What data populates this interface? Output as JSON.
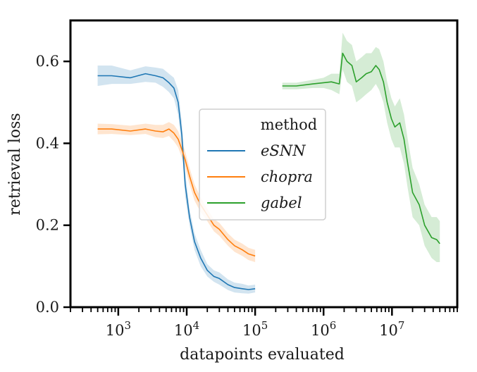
{
  "chart_data": {
    "type": "line",
    "xlabel": "datapoints evaluated",
    "ylabel": "retrieval loss",
    "xscale": "log",
    "xlim": [
      200,
      90000000
    ],
    "ylim": [
      0.0,
      0.7
    ],
    "yticks": [
      0.0,
      0.2,
      0.4,
      0.6
    ],
    "ytick_labels": [
      "0.0",
      "0.2",
      "0.4",
      "0.6"
    ],
    "xticks": [
      1000,
      10000,
      100000,
      1000000,
      10000000
    ],
    "xtick_labels": [
      {
        "base": "10",
        "exp": "3"
      },
      {
        "base": "10",
        "exp": "4"
      },
      {
        "base": "10",
        "exp": "5"
      },
      {
        "base": "10",
        "exp": "6"
      },
      {
        "base": "10",
        "exp": "7"
      }
    ],
    "grid": false,
    "legend": {
      "title": "method",
      "placement": "center"
    },
    "series": [
      {
        "name": "eSNN",
        "color": "#1f77b4",
        "x": [
          500,
          800,
          1500,
          2500,
          3500,
          4500,
          5500,
          6500,
          7500,
          8500,
          9500,
          11000,
          13000,
          16000,
          20000,
          25000,
          30000,
          40000,
          50000,
          65000,
          80000,
          100000
        ],
        "y": [
          0.565,
          0.565,
          0.56,
          0.57,
          0.565,
          0.56,
          0.548,
          0.535,
          0.5,
          0.42,
          0.3,
          0.22,
          0.16,
          0.12,
          0.09,
          0.075,
          0.07,
          0.055,
          0.048,
          0.045,
          0.043,
          0.045
        ],
        "lower": [
          0.54,
          0.545,
          0.545,
          0.55,
          0.548,
          0.538,
          0.525,
          0.51,
          0.47,
          0.39,
          0.27,
          0.2,
          0.14,
          0.1,
          0.075,
          0.062,
          0.055,
          0.042,
          0.036,
          0.034,
          0.033,
          0.036
        ],
        "upper": [
          0.59,
          0.59,
          0.578,
          0.588,
          0.585,
          0.582,
          0.57,
          0.56,
          0.53,
          0.45,
          0.33,
          0.24,
          0.18,
          0.14,
          0.105,
          0.09,
          0.085,
          0.068,
          0.06,
          0.057,
          0.053,
          0.055
        ]
      },
      {
        "name": "chopra",
        "color": "#ff7f0e",
        "x": [
          500,
          800,
          1500,
          2500,
          3500,
          4500,
          5500,
          6500,
          7500,
          8500,
          9500,
          11000,
          13000,
          16000,
          20000,
          25000,
          30000,
          40000,
          50000,
          65000,
          80000,
          100000
        ],
        "y": [
          0.435,
          0.435,
          0.43,
          0.435,
          0.43,
          0.428,
          0.435,
          0.425,
          0.41,
          0.385,
          0.36,
          0.32,
          0.28,
          0.25,
          0.225,
          0.2,
          0.19,
          0.165,
          0.15,
          0.14,
          0.13,
          0.125
        ],
        "lower": [
          0.422,
          0.423,
          0.42,
          0.423,
          0.415,
          0.413,
          0.418,
          0.405,
          0.39,
          0.365,
          0.34,
          0.3,
          0.26,
          0.232,
          0.21,
          0.185,
          0.174,
          0.15,
          0.135,
          0.125,
          0.115,
          0.11
        ],
        "upper": [
          0.448,
          0.447,
          0.443,
          0.448,
          0.445,
          0.445,
          0.452,
          0.445,
          0.43,
          0.405,
          0.38,
          0.34,
          0.3,
          0.268,
          0.24,
          0.215,
          0.206,
          0.18,
          0.165,
          0.155,
          0.145,
          0.14
        ]
      },
      {
        "name": "gabel",
        "color": "#2ca02c",
        "x": [
          250000,
          400000,
          700000,
          1000000,
          1300000,
          1700000,
          1900000,
          2200000,
          2600000,
          3000000,
          3600000,
          4200000,
          5000000,
          5800000,
          6500000,
          7500000,
          8500000,
          9800000,
          11000000,
          13000000,
          15000000,
          17000000,
          20000000,
          25000000,
          30000000,
          38000000,
          45000000,
          50000000
        ],
        "y": [
          0.54,
          0.54,
          0.545,
          0.548,
          0.55,
          0.545,
          0.62,
          0.6,
          0.59,
          0.55,
          0.56,
          0.57,
          0.575,
          0.59,
          0.58,
          0.55,
          0.5,
          0.46,
          0.44,
          0.45,
          0.41,
          0.35,
          0.28,
          0.25,
          0.2,
          0.17,
          0.165,
          0.155
        ],
        "lower": [
          0.532,
          0.532,
          0.535,
          0.535,
          0.53,
          0.52,
          0.58,
          0.55,
          0.54,
          0.5,
          0.51,
          0.52,
          0.53,
          0.545,
          0.53,
          0.5,
          0.45,
          0.41,
          0.39,
          0.39,
          0.35,
          0.29,
          0.22,
          0.2,
          0.15,
          0.12,
          0.11,
          0.11
        ],
        "upper": [
          0.548,
          0.548,
          0.555,
          0.56,
          0.57,
          0.57,
          0.67,
          0.65,
          0.64,
          0.6,
          0.61,
          0.62,
          0.62,
          0.635,
          0.63,
          0.6,
          0.55,
          0.51,
          0.49,
          0.51,
          0.47,
          0.41,
          0.34,
          0.3,
          0.25,
          0.22,
          0.22,
          0.21
        ]
      }
    ]
  }
}
